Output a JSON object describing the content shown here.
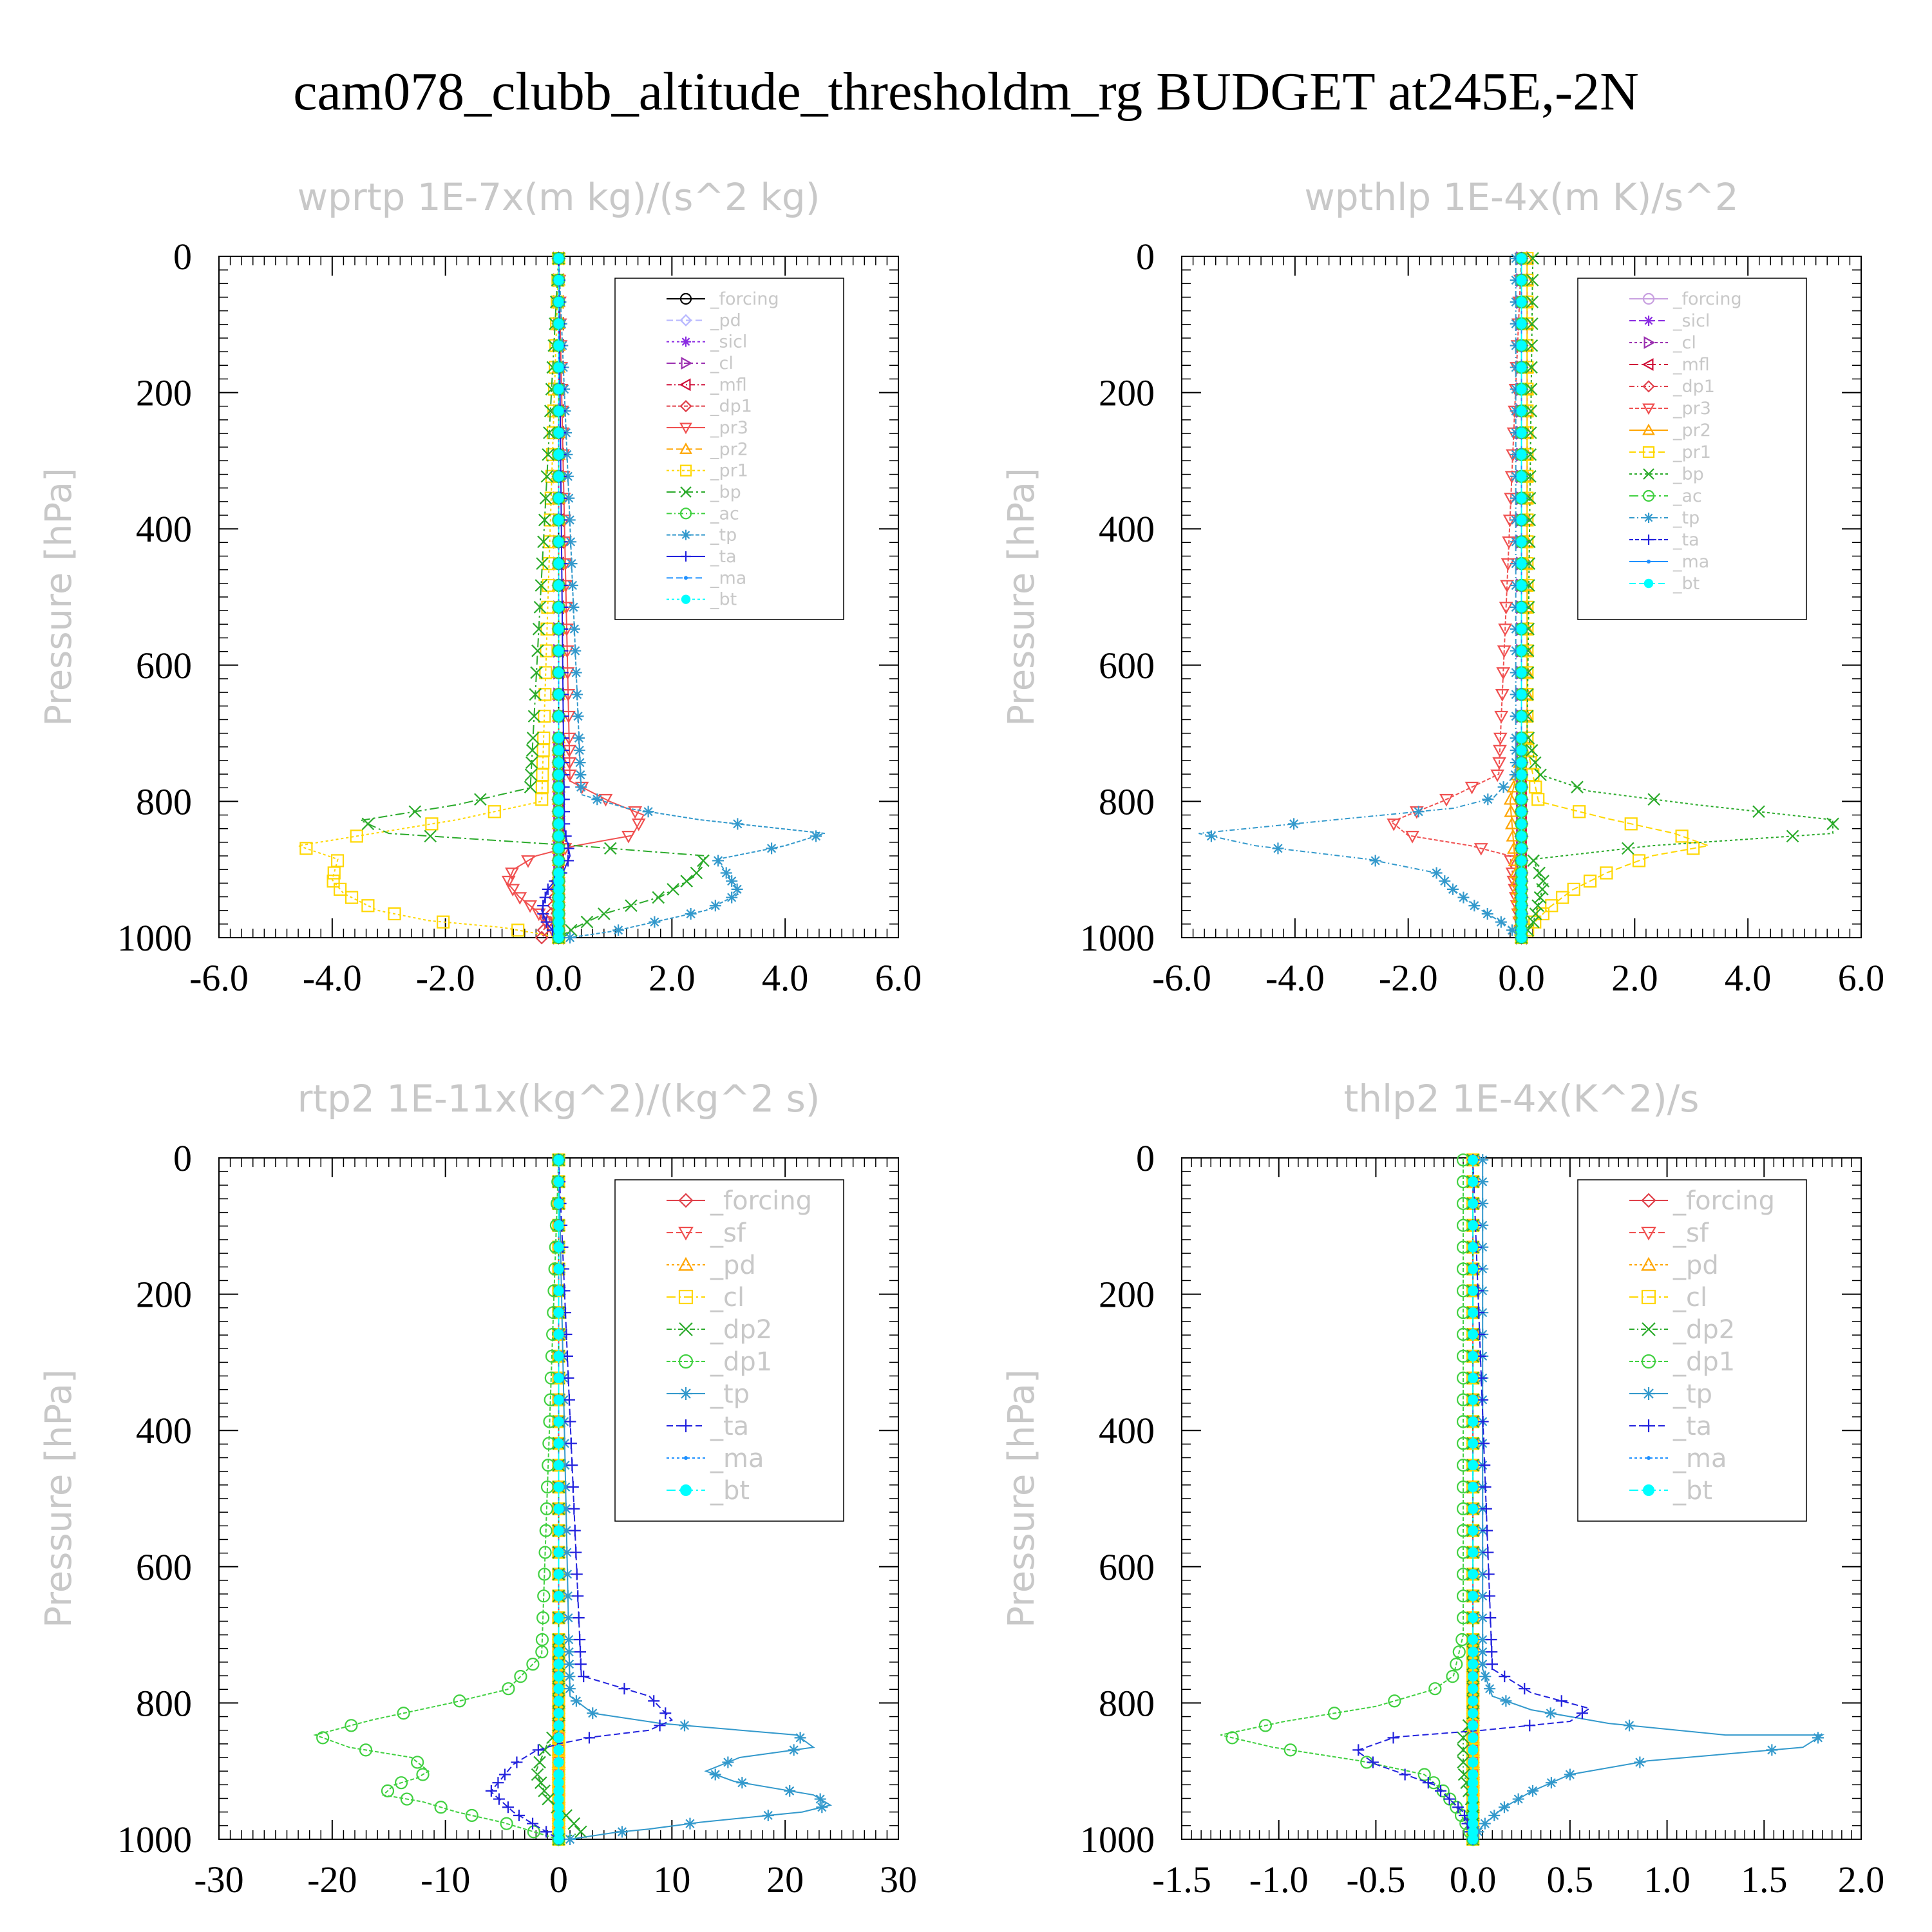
{
  "title": "cam078_clubb_altitude_thresholdm_rg  BUDGET at245E,-2N",
  "colors": {
    "forcing_black": "#000000",
    "pd": "#b8b8ff",
    "sicl": "#8a2be2",
    "cl_purple": "#9b30b0",
    "mfl": "#d0103a",
    "dp1_red": "#e0404a",
    "pr3": "#f05050",
    "pr2": "#ffa500",
    "pr1": "#ffd700",
    "bp": "#2aaa2a",
    "ac": "#40d040",
    "tp": "#3399cc",
    "ta": "#2222dd",
    "ma": "#1e90ff",
    "bt": "#00ffff"
  },
  "chart_data": [
    {
      "type": "line",
      "title": "wprtp  1E-7x(m kg)/(s^2 kg)",
      "ylabel": "Pressure [hPa]",
      "xlim": [
        -6,
        6
      ],
      "ylim": [
        1000,
        0
      ],
      "xticks": [
        "-6.0",
        "-4.0",
        "-2.0",
        "0.0",
        "2.0",
        "4.0",
        "6.0"
      ],
      "yticks": [
        "0",
        "200",
        "400",
        "600",
        "800",
        "1000"
      ],
      "legend_position": "top-right",
      "series": [
        {
          "name": "_forcing",
          "color": "#000000",
          "marker": "circle",
          "x": [
            0,
            0
          ],
          "y": [
            0,
            1000
          ]
        },
        {
          "name": "_pd",
          "color": "#b8b8ff",
          "marker": "diamond",
          "x": [
            0,
            0
          ],
          "y": [
            0,
            1000
          ]
        },
        {
          "name": "_sicl",
          "color": "#8a2be2",
          "marker": "star",
          "x": [
            0,
            0
          ],
          "y": [
            0,
            1000
          ]
        },
        {
          "name": "_cl",
          "color": "#9b30b0",
          "marker": "tri-right",
          "x": [
            0,
            0
          ],
          "y": [
            0,
            1000
          ]
        },
        {
          "name": "_mfl",
          "color": "#d0103a",
          "marker": "tri-left",
          "x": [
            0,
            0
          ],
          "y": [
            0,
            1000
          ]
        },
        {
          "name": "_dp1",
          "color": "#e0404a",
          "marker": "diamond",
          "x": [
            0,
            0,
            -0.1,
            -0.3
          ],
          "y": [
            0,
            900,
            960,
            995
          ]
        },
        {
          "name": "_pr3",
          "color": "#f05050",
          "marker": "tri-down",
          "x": [
            0,
            0.2,
            0.9,
            1.5,
            1.3,
            0.3,
            -0.4,
            -0.8,
            -0.9,
            -0.7,
            -0.4,
            -0.2,
            0
          ],
          "y": [
            0,
            770,
            800,
            820,
            850,
            865,
            880,
            900,
            920,
            940,
            960,
            980,
            1000
          ]
        },
        {
          "name": "_pr2",
          "color": "#ffa500",
          "marker": "tri-up",
          "x": [
            0,
            0,
            0
          ],
          "y": [
            0,
            700,
            1000
          ]
        },
        {
          "name": "_pr1",
          "color": "#ffd700",
          "marker": "square",
          "x": [
            0,
            -0.3,
            -1.8,
            -4.6,
            -3.9,
            -4.0,
            -3.8,
            -3.2,
            -2.3,
            -1.0,
            -0.3,
            0
          ],
          "y": [
            0,
            800,
            827,
            865,
            885,
            915,
            935,
            960,
            975,
            985,
            995,
            1000
          ]
        },
        {
          "name": "_bp",
          "color": "#2aaa2a",
          "marker": "x",
          "x": [
            0,
            -0.5,
            -1.8,
            -3.5,
            -3.0,
            0.3,
            2.6,
            2.4,
            1.8,
            0.8,
            0.3,
            0
          ],
          "y": [
            0,
            780,
            805,
            828,
            847,
            865,
            880,
            910,
            940,
            965,
            985,
            1000
          ]
        },
        {
          "name": "_ac",
          "color": "#40d040",
          "marker": "circle",
          "x": [
            0,
            0
          ],
          "y": [
            0,
            1000
          ]
        },
        {
          "name": "_tp",
          "color": "#3399cc",
          "marker": "asterisk",
          "x": [
            0,
            0.4,
            1.2,
            2.5,
            4.7,
            4.0,
            2.8,
            3.2,
            2.6,
            1.8,
            1.0,
            0.2
          ],
          "y": [
            0,
            790,
            810,
            827,
            847,
            865,
            885,
            935,
            960,
            975,
            990,
            1000
          ]
        },
        {
          "name": "_ta",
          "color": "#2222dd",
          "marker": "plus",
          "x": [
            0,
            0.1,
            0.2,
            0.1,
            -0.2,
            -0.3,
            -0.2,
            0
          ],
          "y": [
            0,
            840,
            880,
            900,
            930,
            960,
            980,
            1000
          ]
        },
        {
          "name": "_ma",
          "color": "#1e90ff",
          "marker": "dot",
          "x": [
            0,
            0
          ],
          "y": [
            0,
            1000
          ]
        },
        {
          "name": "_bt",
          "color": "#00ffff",
          "marker": "filled",
          "x": [
            0,
            0
          ],
          "y": [
            0,
            1000
          ]
        }
      ]
    },
    {
      "type": "line",
      "title": "wpthlp  1E-4x(m K)/s^2",
      "ylabel": "Pressure [hPa]",
      "xlim": [
        -6,
        6
      ],
      "ylim": [
        1000,
        0
      ],
      "xticks": [
        "-6.0",
        "-4.0",
        "-2.0",
        "0.0",
        "2.0",
        "4.0",
        "6.0"
      ],
      "yticks": [
        "0",
        "200",
        "400",
        "600",
        "800",
        "1000"
      ],
      "legend_position": "top-right",
      "series": [
        {
          "name": "_forcing",
          "color": "#c8a0e0",
          "marker": "circle",
          "x": [
            0,
            0
          ],
          "y": [
            0,
            1000
          ]
        },
        {
          "name": "_sicl",
          "color": "#8a2be2",
          "marker": "star",
          "x": [
            0,
            0
          ],
          "y": [
            0,
            1000
          ]
        },
        {
          "name": "_cl",
          "color": "#9b30b0",
          "marker": "tri-right",
          "x": [
            0,
            0
          ],
          "y": [
            0,
            1000
          ]
        },
        {
          "name": "_mfl",
          "color": "#d0103a",
          "marker": "tri-left",
          "x": [
            0,
            0
          ],
          "y": [
            0,
            1000
          ]
        },
        {
          "name": "_dp1",
          "color": "#e0404a",
          "marker": "diamond",
          "x": [
            0,
            0
          ],
          "y": [
            0,
            1000
          ]
        },
        {
          "name": "_pr3",
          "color": "#f05050",
          "marker": "tri-down",
          "x": [
            0,
            -0.4,
            -1.4,
            -2.3,
            -2.0,
            -0.9,
            -0.2,
            0
          ],
          "y": [
            0,
            760,
            800,
            830,
            850,
            865,
            880,
            1000
          ]
        },
        {
          "name": "_pr2",
          "color": "#ffa500",
          "marker": "tri-up",
          "x": [
            0.1,
            0.1,
            -0.2,
            0
          ],
          "y": [
            0,
            700,
            800,
            1000
          ]
        },
        {
          "name": "_pr1",
          "color": "#ffd700",
          "marker": "square",
          "x": [
            0.1,
            0.1,
            0.3,
            1.5,
            2.7,
            3.3,
            2.3,
            1.5,
            0.9,
            0.5,
            0.2,
            0
          ],
          "y": [
            0,
            720,
            800,
            825,
            847,
            865,
            880,
            905,
            930,
            955,
            980,
            1000
          ]
        },
        {
          "name": "_bp",
          "color": "#2aaa2a",
          "marker": "x",
          "x": [
            0.2,
            0.1,
            0.3,
            1.2,
            3.1,
            5.5,
            5.5,
            2.3,
            0.2,
            0.4,
            0.3,
            0.2,
            0
          ],
          "y": [
            0,
            700,
            760,
            785,
            805,
            827,
            847,
            865,
            885,
            920,
            950,
            980,
            1000
          ]
        },
        {
          "name": "_ac",
          "color": "#40d040",
          "marker": "circle",
          "x": [
            0,
            0
          ],
          "y": [
            0,
            1000
          ]
        },
        {
          "name": "_tp",
          "color": "#3399cc",
          "marker": "asterisk",
          "x": [
            -0.1,
            -0.1,
            -0.5,
            -1.2,
            -3.3,
            -5.7,
            -4.7,
            -2.7,
            -1.5,
            -1.2,
            -0.8,
            -0.3,
            0
          ],
          "y": [
            0,
            760,
            795,
            810,
            827,
            847,
            865,
            885,
            905,
            930,
            955,
            980,
            1000
          ]
        },
        {
          "name": "_ta",
          "color": "#2222dd",
          "marker": "plus",
          "x": [
            0,
            0
          ],
          "y": [
            0,
            1000
          ]
        },
        {
          "name": "_ma",
          "color": "#1e90ff",
          "marker": "dot",
          "x": [
            0,
            0
          ],
          "y": [
            0,
            1000
          ]
        },
        {
          "name": "_bt",
          "color": "#00ffff",
          "marker": "filled",
          "x": [
            0,
            0
          ],
          "y": [
            0,
            1000
          ]
        }
      ]
    },
    {
      "type": "line",
      "title": "rtp2  1E-11x(kg^2)/(kg^2 s)",
      "ylabel": "Pressure [hPa]",
      "xlim": [
        -30,
        30
      ],
      "ylim": [
        1000,
        0
      ],
      "xticks": [
        "-30",
        "-20",
        "-10",
        "0",
        "10",
        "20",
        "30"
      ],
      "yticks": [
        "0",
        "200",
        "400",
        "600",
        "800",
        "1000"
      ],
      "legend_position": "top-right",
      "series": [
        {
          "name": "_forcing",
          "color": "#e0404a",
          "marker": "diamond",
          "x": [
            0,
            0
          ],
          "y": [
            0,
            1000
          ]
        },
        {
          "name": "_sf",
          "color": "#f05050",
          "marker": "tri-down",
          "x": [
            0,
            0
          ],
          "y": [
            0,
            1000
          ]
        },
        {
          "name": "_pd",
          "color": "#ffa500",
          "marker": "tri-up",
          "x": [
            0,
            0
          ],
          "y": [
            0,
            1000
          ]
        },
        {
          "name": "_cl",
          "color": "#ffd700",
          "marker": "square",
          "x": [
            0,
            0
          ],
          "y": [
            0,
            1000
          ]
        },
        {
          "name": "_dp2",
          "color": "#2aaa2a",
          "marker": "x",
          "x": [
            0,
            0,
            -1,
            -2,
            -1,
            1,
            2,
            0
          ],
          "y": [
            0,
            840,
            860,
            900,
            940,
            970,
            990,
            1000
          ]
        },
        {
          "name": "_dp1",
          "color": "#40d040",
          "marker": "circle",
          "x": [
            0,
            -1.5,
            -4.5,
            -9.5,
            -16.5,
            -21.5,
            -18.5,
            -13,
            -11.5,
            -12.5,
            -14.5,
            -15.5,
            -12,
            -9,
            -5,
            -2,
            0
          ],
          "y": [
            0,
            730,
            780,
            800,
            825,
            847,
            865,
            880,
            900,
            910,
            920,
            935,
            945,
            960,
            975,
            990,
            1000
          ]
        },
        {
          "name": "_tp",
          "color": "#3399cc",
          "marker": "asterisk",
          "x": [
            0,
            1,
            3,
            9,
            21,
            22.5,
            16,
            13,
            15.5,
            22.5,
            24,
            21.5,
            12.5,
            8,
            5,
            1
          ],
          "y": [
            0,
            790,
            815,
            830,
            847,
            865,
            880,
            900,
            915,
            935,
            950,
            960,
            975,
            985,
            990,
            1000
          ]
        },
        {
          "name": "_ta",
          "color": "#2222dd",
          "marker": "plus",
          "x": [
            0,
            2,
            5,
            8,
            10,
            8,
            3,
            0,
            -2,
            -4,
            -5,
            -6,
            -4,
            -2,
            0
          ],
          "y": [
            0,
            760,
            775,
            790,
            825,
            840,
            850,
            860,
            870,
            890,
            910,
            930,
            960,
            980,
            1000
          ]
        },
        {
          "name": "_ma",
          "color": "#1e90ff",
          "marker": "dot",
          "x": [
            0,
            0
          ],
          "y": [
            0,
            1000
          ]
        },
        {
          "name": "_bt",
          "color": "#00ffff",
          "marker": "filled",
          "x": [
            0,
            0
          ],
          "y": [
            0,
            1000
          ]
        }
      ]
    },
    {
      "type": "line",
      "title": "thlp2  1E-4x(K^2)/s",
      "ylabel": "Pressure [hPa]",
      "xlim": [
        -1.5,
        2.0
      ],
      "ylim": [
        1000,
        0
      ],
      "xticks": [
        "-1.5",
        "-1.0",
        "-0.5",
        "0.0",
        "0.5",
        "1.0",
        "1.5",
        "2.0"
      ],
      "yticks": [
        "0",
        "200",
        "400",
        "600",
        "800",
        "1000"
      ],
      "legend_position": "top-right",
      "series": [
        {
          "name": "_forcing",
          "color": "#e0404a",
          "marker": "diamond",
          "x": [
            0,
            0
          ],
          "y": [
            0,
            1000
          ]
        },
        {
          "name": "_sf",
          "color": "#f05050",
          "marker": "tri-down",
          "x": [
            0,
            0
          ],
          "y": [
            0,
            1000
          ]
        },
        {
          "name": "_pd",
          "color": "#ffa500",
          "marker": "tri-up",
          "x": [
            0,
            0
          ],
          "y": [
            0,
            1000
          ]
        },
        {
          "name": "_cl",
          "color": "#ffd700",
          "marker": "square",
          "x": [
            0,
            0
          ],
          "y": [
            0,
            1000
          ]
        },
        {
          "name": "_dp2",
          "color": "#2aaa2a",
          "marker": "x",
          "x": [
            0,
            0,
            -0.05,
            -0.05,
            0,
            0
          ],
          "y": [
            0,
            820,
            850,
            900,
            950,
            1000
          ]
        },
        {
          "name": "_dp1",
          "color": "#40d040",
          "marker": "circle",
          "x": [
            -0.05,
            -0.05,
            -0.1,
            -0.2,
            -0.5,
            -0.97,
            -1.3,
            -1.03,
            -0.58,
            -0.25,
            -0.15,
            -0.08,
            -0.03,
            0
          ],
          "y": [
            0,
            700,
            760,
            780,
            805,
            827,
            847,
            865,
            885,
            905,
            930,
            955,
            980,
            1000
          ]
        },
        {
          "name": "_tp",
          "color": "#3399cc",
          "marker": "asterisk",
          "x": [
            0.05,
            0.05,
            0.1,
            0.3,
            0.7,
            1.3,
            1.8,
            1.7,
            0.9,
            0.5,
            0.3,
            0.15,
            0.05,
            0
          ],
          "y": [
            0,
            750,
            790,
            810,
            830,
            847,
            847,
            865,
            885,
            905,
            930,
            955,
            980,
            1000
          ]
        },
        {
          "name": "_ta",
          "color": "#2222dd",
          "marker": "plus",
          "x": [
            0,
            0.1,
            0.3,
            0.6,
            0.5,
            0.05,
            -0.4,
            -0.6,
            -0.5,
            -0.2,
            -0.05,
            0
          ],
          "y": [
            0,
            750,
            785,
            808,
            827,
            840,
            850,
            870,
            890,
            920,
            960,
            1000
          ]
        },
        {
          "name": "_ma",
          "color": "#1e90ff",
          "marker": "dot",
          "x": [
            0,
            0
          ],
          "y": [
            0,
            1000
          ]
        },
        {
          "name": "_bt",
          "color": "#00ffff",
          "marker": "filled",
          "x": [
            0,
            0
          ],
          "y": [
            0,
            1000
          ]
        }
      ]
    }
  ]
}
